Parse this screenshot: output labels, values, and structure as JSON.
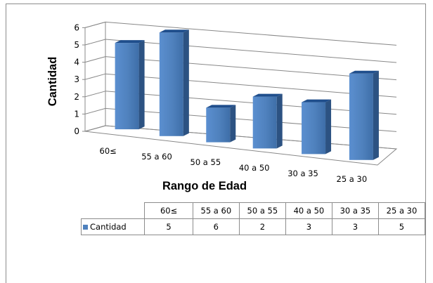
{
  "chart_data": {
    "type": "bar",
    "categories": [
      "60≤",
      "55 a 60",
      "50 a 55",
      "40 a 50",
      "30 a 35",
      "25 a 30"
    ],
    "series": [
      {
        "name": "Cantidad",
        "values": [
          5,
          6,
          2,
          3,
          3,
          5
        ]
      }
    ],
    "xlabel": "Rango de Edad",
    "ylabel": "Cantidad",
    "ylim": [
      0,
      6
    ],
    "yticks": [
      "0",
      "1",
      "2",
      "3",
      "4",
      "5",
      "6"
    ],
    "grid": true,
    "legend": "data-table",
    "colors": {
      "bar_front": "#4f81bd",
      "bar_side": "#2c5282",
      "bar_top": "#1f4e8c",
      "grid": "#888888"
    }
  },
  "table": {
    "series_label": "Cantidad",
    "headers": [
      "60≤",
      "55 a 60",
      "50 a 55",
      "40 a 50",
      "30 a 35",
      "25 a 30"
    ],
    "values": [
      "5",
      "6",
      "2",
      "3",
      "3",
      "5"
    ]
  }
}
